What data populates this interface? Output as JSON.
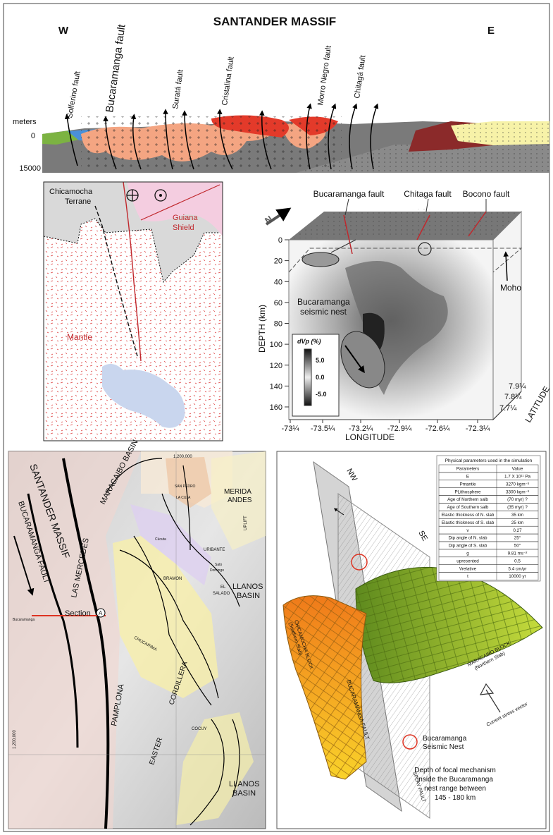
{
  "cross_section": {
    "title": "SANTANDER MASSIF",
    "west": "W",
    "east": "E",
    "faults": [
      "Solferino fault",
      "Bucaramanga fault",
      "Suratá fault",
      "Cristalina fault",
      "Morro Negro fault",
      "Chitagá fault"
    ],
    "depth_label": "meters",
    "depth_ticks": [
      0,
      15000
    ]
  },
  "mantle_sketch": {
    "terrane": [
      "Chicamocha",
      "Terrane"
    ],
    "shield": [
      "Guiana",
      "Shield"
    ],
    "mantle": "Mantle"
  },
  "tomography": {
    "faults": [
      "Bucaramanga fault",
      "Chitaga fault",
      "Bocono fault"
    ],
    "north": "N",
    "moho": "Moho",
    "nest": [
      "Bucaramanga",
      "seismic nest"
    ],
    "depth_axis": "DEPTH (km)",
    "depth_ticks": [
      0,
      20,
      40,
      60,
      80,
      100,
      120,
      140,
      160
    ],
    "legend_title": "dVp (%)",
    "legend_ticks": [
      "5.0",
      "0.0",
      "-5.0"
    ],
    "longitude_axis": "LONGITUDE",
    "longitude_ticks": [
      "-73¼",
      "-73.5¼",
      "-73.2¼",
      "-72.9¼",
      "-72.6¼",
      "-72.3¼"
    ],
    "latitude_axis": "LATITUDE",
    "latitude_ticks": [
      "7.9¼",
      "7.8¼",
      "7.7¼"
    ]
  },
  "map": {
    "labels": [
      "SANTANDER MASSIF",
      "BUCARAMANGA FAULT",
      "LAS MERCEDES",
      "MARACAIBO BASIN",
      "MERIDA",
      "ANDES",
      "LLANOS",
      "BASIN",
      "LLANOS",
      "BASIN",
      "Section",
      "A",
      "Bucaramanga",
      "PAMPLONA",
      "CHUCARIMA",
      "EASTER",
      "CORDILLERA",
      "COCUY",
      "1,200,000",
      "1,200,000",
      "LA CUJA",
      "SAN PEDRO",
      "URIBANTE",
      "BRAMON",
      "EL",
      "SALADO",
      "Sato",
      "Domingo",
      "Cúcuta",
      "UPLIFT"
    ]
  },
  "block_model": {
    "table": {
      "title": "Physical parameters used in the simulation",
      "header": [
        "Parameters",
        "Value"
      ],
      "rows": [
        [
          "E",
          "1.7 X 10¹¹ Pa"
        ],
        [
          "Pmantle",
          "3270 kgm⁻³"
        ],
        [
          "PLithosphere",
          "3300 kgm⁻³"
        ],
        [
          "Age of Northern salb",
          "(70 myr) ?"
        ],
        [
          "Age of Southern salb",
          "(35 myr) ?"
        ],
        [
          "Elastic thickness of N. slab",
          "35 km"
        ],
        [
          "Elastic thickness of S. slab",
          "25 km"
        ],
        [
          "v",
          "0,27"
        ],
        [
          "Dip angle of N. slab",
          "25°"
        ],
        [
          "Dip angle of S. slab",
          "50°"
        ],
        [
          "g",
          "9.81 ms⁻²"
        ],
        [
          "upresented",
          "0.5"
        ],
        [
          "Vrelative",
          "5.4 cm/yr"
        ],
        [
          "t",
          "10000 yr"
        ]
      ]
    },
    "planes": [
      "NW",
      "SE"
    ],
    "south_block": [
      "CHICAMOCHA BLOCK",
      "(Southern Slab)"
    ],
    "north_block": [
      "MARACAIBO BLOCK",
      "(Northern Slab)"
    ],
    "stress": "Current stress vector",
    "faults": [
      "BUCARAMANGA FAULT",
      "SPLAY FAULT"
    ],
    "nest_legend": [
      "Bucaramanga",
      "Seismic Nest"
    ],
    "note": [
      "Depth of focal mechanism",
      "inside the Bucaramanga",
      "nest range between",
      "145 - 180 km"
    ]
  }
}
